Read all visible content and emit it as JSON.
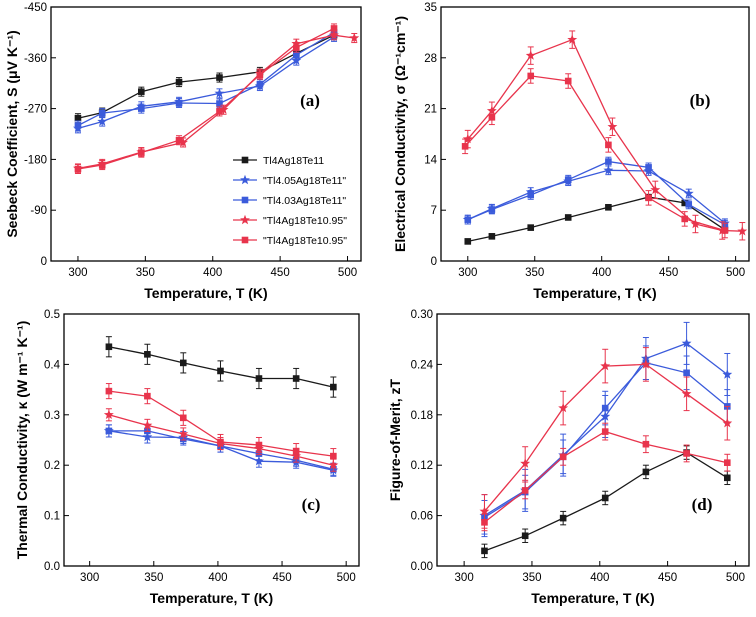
{
  "figure": {
    "legend": [
      {
        "label": "Tl4Ag18Te11",
        "color": "#1a1a1a",
        "marker": "square"
      },
      {
        "label": "\"Tl4.05Ag18Te11\"",
        "color": "#3b5bdb",
        "marker": "star"
      },
      {
        "label": "\"Tl4.03Ag18Te11\"",
        "color": "#3b5bdb",
        "marker": "square"
      },
      {
        "label": "\"Tl4Ag18Te10.95\"",
        "color": "#e8344c",
        "marker": "star"
      },
      {
        "label": "\"Tl4Ag18Te10.95\"",
        "color": "#e8344c",
        "marker": "square"
      }
    ]
  },
  "chart_data": [
    {
      "panel": "(a)",
      "type": "line",
      "xlabel": "Temperature, T (K)",
      "ylabel": "Seebeck Coefficient, S (μV K⁻¹)",
      "xlim": [
        280,
        510
      ],
      "ylim": [
        0,
        -450
      ],
      "xticks": [
        300,
        350,
        400,
        450,
        500
      ],
      "yticks": [
        0,
        -90,
        -180,
        -270,
        -360,
        -450
      ],
      "series": [
        {
          "name": "Tl4Ag18Te11",
          "x": [
            300,
            318,
            347,
            375,
            405,
            435,
            462,
            490
          ],
          "y": [
            -253,
            -263,
            -300,
            -317,
            -325,
            -335,
            -368,
            -400
          ],
          "err": 8
        },
        {
          "name": "\"Tl4.05Ag18Te11\"",
          "x": [
            300,
            318,
            347,
            375,
            405,
            435,
            462,
            490
          ],
          "y": [
            -235,
            -247,
            -274,
            -282,
            -297,
            -310,
            -355,
            -397
          ],
          "err": 8
        },
        {
          "name": "\"Tl4.03Ag18Te11\"",
          "x": [
            300,
            318,
            347,
            375,
            405,
            435,
            462,
            490
          ],
          "y": [
            -240,
            -262,
            -270,
            -280,
            -279,
            -313,
            -365,
            -405
          ],
          "err": 8
        },
        {
          "name": "\"Tl4Ag18Te10.95\"",
          "x": [
            300,
            318,
            347,
            378,
            408,
            435,
            462,
            490,
            505
          ],
          "y": [
            -164,
            -172,
            -193,
            -210,
            -268,
            -332,
            -385,
            -400,
            -395
          ],
          "err": 8
        },
        {
          "name": "\"Tl4Ag18Te10.95\"",
          "x": [
            300,
            318,
            347,
            375,
            405,
            435,
            462,
            490
          ],
          "y": [
            -163,
            -170,
            -192,
            -214,
            -265,
            -330,
            -378,
            -412
          ],
          "err": 8
        }
      ]
    },
    {
      "panel": "(b)",
      "type": "line",
      "xlabel": "Temperature, T (K)",
      "ylabel": "Electrical Conductivity, σ (Ω⁻¹cm⁻¹)",
      "xlim": [
        280,
        510
      ],
      "ylim": [
        0,
        35
      ],
      "xticks": [
        300,
        350,
        400,
        450,
        500
      ],
      "yticks": [
        0,
        7,
        14,
        21,
        28,
        35
      ],
      "series": [
        {
          "name": "Tl4Ag18Te11",
          "x": [
            300,
            318,
            347,
            375,
            405,
            435,
            462,
            492
          ],
          "y": [
            2.7,
            3.4,
            4.6,
            6.0,
            7.4,
            8.8,
            8.0,
            4.3
          ],
          "err": 0.3
        },
        {
          "name": "\"Tl4.05Ag18Te11\"",
          "x": [
            300,
            318,
            347,
            375,
            405,
            435,
            465,
            492
          ],
          "y": [
            5.7,
            7.2,
            9.5,
            11.0,
            12.5,
            12.4,
            9.3,
            5.2
          ],
          "err": 0.6
        },
        {
          "name": "\"Tl4.03Ag18Te11\"",
          "x": [
            300,
            318,
            347,
            375,
            405,
            435,
            465,
            492
          ],
          "y": [
            5.7,
            7.1,
            9.1,
            11.2,
            13.7,
            12.9,
            7.8,
            5.0
          ],
          "err": 0.6
        },
        {
          "name": "\"Tl4Ag18Te10.95\"",
          "x": [
            300,
            318,
            347,
            378,
            408,
            440,
            470,
            490,
            505
          ],
          "y": [
            16.8,
            20.7,
            28.3,
            30.5,
            18.5,
            9.8,
            5.1,
            4.2,
            4.1
          ],
          "err": 1.2
        },
        {
          "name": "\"Tl4Ag18Te10.95\"",
          "x": [
            298,
            318,
            347,
            375,
            405,
            435,
            462,
            492
          ],
          "y": [
            15.8,
            19.8,
            25.5,
            24.8,
            16.0,
            8.7,
            5.8,
            4.2
          ],
          "err": 1.0
        }
      ]
    },
    {
      "panel": "(c)",
      "type": "line",
      "xlabel": "Temperature, T (K)",
      "ylabel": "Thermal Conductivity, κ (W m⁻¹ K⁻¹)",
      "xlim": [
        280,
        510
      ],
      "ylim": [
        0,
        0.5
      ],
      "xticks": [
        300,
        350,
        400,
        450,
        500
      ],
      "yticks": [
        0.0,
        0.1,
        0.2,
        0.3,
        0.4,
        0.5
      ],
      "series": [
        {
          "name": "Tl4Ag18Te11",
          "x": [
            315,
            345,
            373,
            402,
            432,
            461,
            490
          ],
          "y": [
            0.435,
            0.42,
            0.403,
            0.387,
            0.372,
            0.372,
            0.355
          ],
          "err": 0.02
        },
        {
          "name": "\"Tl4.05Ag18Te11\"",
          "x": [
            315,
            345,
            373,
            402,
            432,
            461,
            490
          ],
          "y": [
            0.268,
            0.256,
            0.255,
            0.238,
            0.208,
            0.206,
            0.19
          ],
          "err": 0.012
        },
        {
          "name": "\"Tl4.03Ag18Te11\"",
          "x": [
            315,
            345,
            373,
            402,
            432,
            461,
            490
          ],
          "y": [
            0.268,
            0.268,
            0.252,
            0.238,
            0.223,
            0.21,
            0.192
          ],
          "err": 0.012
        },
        {
          "name": "\"Tl4Ag18Te10.95\"",
          "x": [
            315,
            345,
            373,
            402,
            432,
            461,
            490
          ],
          "y": [
            0.3,
            0.279,
            0.262,
            0.243,
            0.233,
            0.218,
            0.2
          ],
          "err": 0.012
        },
        {
          "name": "\"Tl4Ag18Te10.95\"",
          "x": [
            315,
            345,
            373,
            402,
            432,
            461,
            490
          ],
          "y": [
            0.347,
            0.337,
            0.294,
            0.246,
            0.24,
            0.228,
            0.218
          ],
          "err": 0.015
        }
      ]
    },
    {
      "panel": "(d)",
      "type": "line",
      "xlabel": "Temperature, T (K)",
      "ylabel": "Figure-of-Merit, zT",
      "xlim": [
        280,
        510
      ],
      "ylim": [
        0,
        0.3
      ],
      "xticks": [
        300,
        350,
        400,
        450,
        500
      ],
      "yticks": [
        0.0,
        0.06,
        0.12,
        0.18,
        0.24,
        0.3
      ],
      "series": [
        {
          "name": "Tl4Ag18Te11",
          "x": [
            315,
            345,
            373,
            404,
            434,
            464,
            494
          ],
          "y": [
            0.018,
            0.036,
            0.057,
            0.081,
            0.112,
            0.135,
            0.105
          ],
          "err": 0.008
        },
        {
          "name": "\"Tl4.05Ag18Te11\"",
          "x": [
            315,
            345,
            373,
            404,
            434,
            464,
            494
          ],
          "y": [
            0.06,
            0.09,
            0.132,
            0.178,
            0.247,
            0.265,
            0.228
          ],
          "err": 0.025
        },
        {
          "name": "\"Tl4.03Ag18Te11\"",
          "x": [
            315,
            345,
            373,
            404,
            434,
            464,
            494
          ],
          "y": [
            0.058,
            0.088,
            0.13,
            0.188,
            0.242,
            0.23,
            0.19
          ],
          "err": 0.02
        },
        {
          "name": "\"Tl4Ag18Te10.95\"",
          "x": [
            315,
            345,
            373,
            404,
            434,
            464,
            494
          ],
          "y": [
            0.065,
            0.122,
            0.188,
            0.238,
            0.24,
            0.205,
            0.17
          ],
          "err": 0.02
        },
        {
          "name": "\"Tl4Ag18Te10.95\"",
          "x": [
            315,
            345,
            373,
            404,
            434,
            464,
            494
          ],
          "y": [
            0.052,
            0.09,
            0.13,
            0.16,
            0.145,
            0.134,
            0.123
          ],
          "err": 0.01
        }
      ]
    }
  ]
}
